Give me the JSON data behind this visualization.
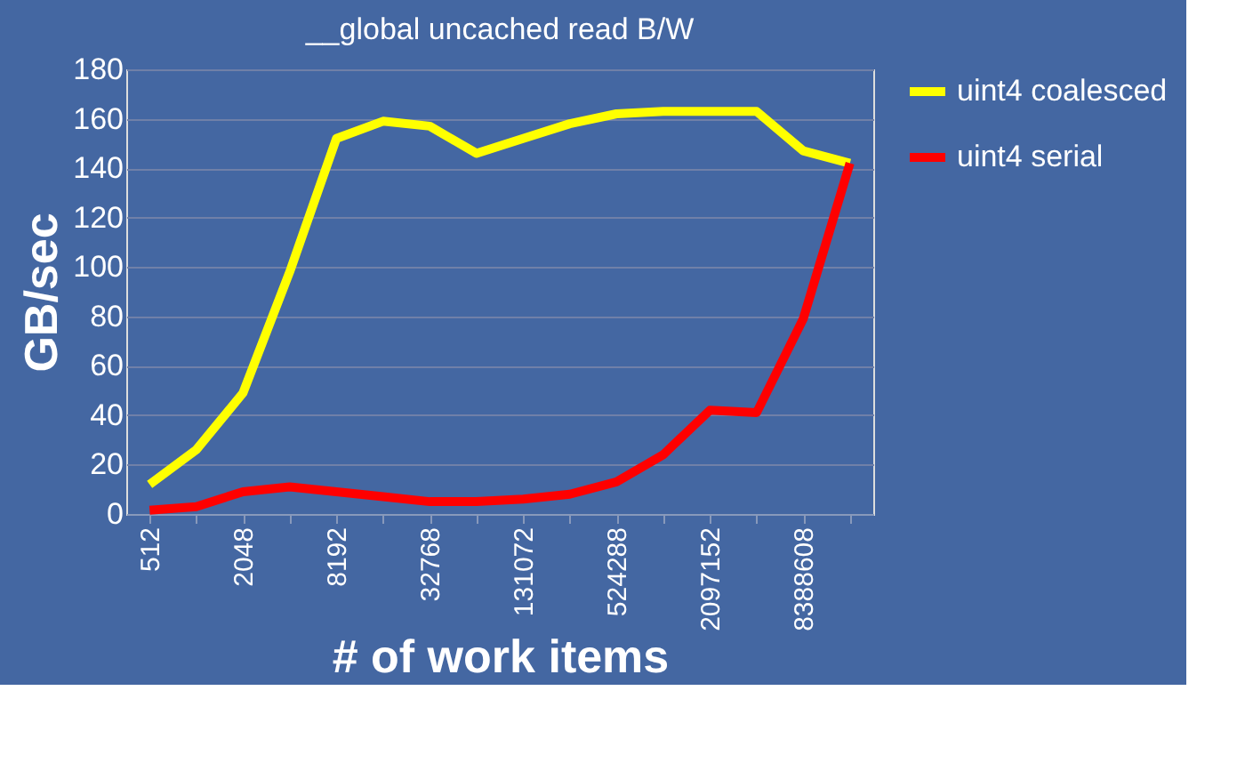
{
  "chart_data": {
    "type": "line",
    "title": "__global uncached read B/W",
    "xlabel": "# of work items",
    "ylabel": "GB/sec",
    "categories": [
      "512",
      null,
      "2048",
      null,
      "8192",
      null,
      "32768",
      null,
      "131072",
      null,
      "524288",
      null,
      "2097152",
      null,
      "8388608",
      null
    ],
    "series": [
      {
        "name": "uint4 coalesced",
        "color": "#ffff00",
        "values": [
          12,
          26,
          49,
          98,
          152,
          159,
          157,
          146,
          152,
          158,
          162,
          163,
          163,
          163,
          147,
          142
        ]
      },
      {
        "name": "uint4 serial",
        "color": "#ff0000",
        "values": [
          1.5,
          3,
          9,
          11,
          9,
          7,
          5,
          5,
          6,
          8,
          13,
          24,
          42,
          41,
          79,
          142
        ]
      }
    ],
    "ylim": [
      0,
      180
    ],
    "yticks": [
      0,
      20,
      40,
      60,
      80,
      100,
      120,
      140,
      160,
      180
    ],
    "grid": "y",
    "legend": "right",
    "marker": "none",
    "line_style": "solid"
  }
}
